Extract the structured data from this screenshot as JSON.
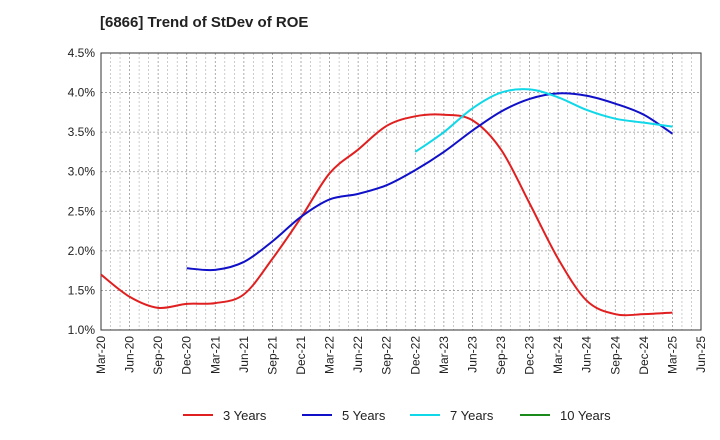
{
  "chart_data": {
    "type": "line",
    "title": "[6866]  Trend of StDev of ROE",
    "xlabel": "",
    "ylabel": "",
    "x": [
      "Mar-20",
      "Jun-20",
      "Sep-20",
      "Dec-20",
      "Mar-21",
      "Jun-21",
      "Sep-21",
      "Dec-21",
      "Mar-22",
      "Jun-22",
      "Sep-22",
      "Dec-22",
      "Mar-23",
      "Jun-23",
      "Sep-23",
      "Dec-23",
      "Mar-24",
      "Jun-24",
      "Sep-24",
      "Dec-24",
      "Mar-25",
      "Jun-25"
    ],
    "ylim": [
      1.0,
      4.5
    ],
    "yticks": [
      "1.0%",
      "1.5%",
      "2.0%",
      "2.5%",
      "3.0%",
      "3.5%",
      "4.0%",
      "4.5%"
    ],
    "grid": true,
    "legend_position": "bottom",
    "series": [
      {
        "name": "3 Years",
        "color": "#e02020",
        "values": [
          1.7,
          1.42,
          1.28,
          1.33,
          1.34,
          1.45,
          1.9,
          2.42,
          2.98,
          3.28,
          3.58,
          3.7,
          3.72,
          3.65,
          3.28,
          2.6,
          1.9,
          1.37,
          1.2,
          1.2,
          1.22,
          null
        ]
      },
      {
        "name": "5 Years",
        "color": "#1010c8",
        "values": [
          null,
          null,
          null,
          1.78,
          1.76,
          1.86,
          2.12,
          2.43,
          2.65,
          2.72,
          2.83,
          3.02,
          3.25,
          3.52,
          3.76,
          3.92,
          3.99,
          3.96,
          3.86,
          3.72,
          3.48,
          null
        ]
      },
      {
        "name": "7 Years",
        "color": "#10d8e8",
        "values": [
          null,
          null,
          null,
          null,
          null,
          null,
          null,
          null,
          null,
          null,
          null,
          3.25,
          3.5,
          3.8,
          4.0,
          4.04,
          3.94,
          3.78,
          3.67,
          3.62,
          3.57,
          null
        ]
      },
      {
        "name": "10 Years",
        "color": "#1a8a1a",
        "values": [
          null,
          null,
          null,
          null,
          null,
          null,
          null,
          null,
          null,
          null,
          null,
          null,
          null,
          null,
          null,
          null,
          null,
          null,
          null,
          null,
          null,
          null
        ]
      }
    ]
  }
}
